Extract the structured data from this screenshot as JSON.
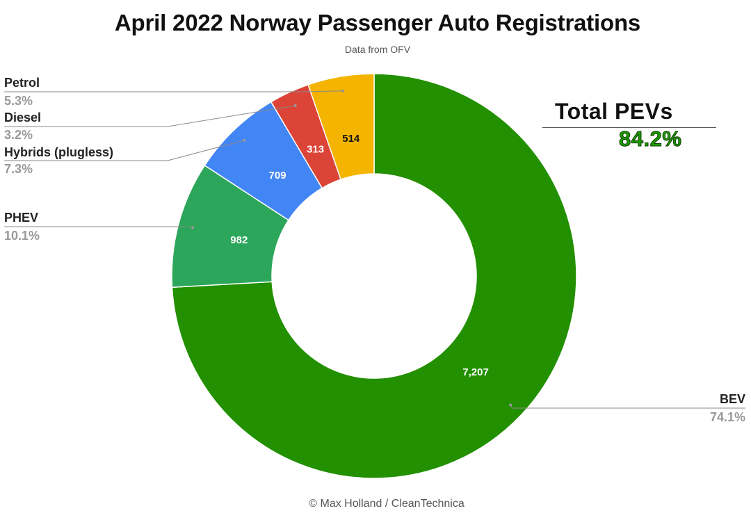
{
  "chart_data": {
    "type": "pie",
    "donut": true,
    "title": "April 2022 Norway Passenger Auto Registrations",
    "subtitle": "Data from OFV",
    "series": [
      {
        "name": "BEV",
        "value": 7207,
        "value_label": "7,207",
        "percent_label": "74.1%",
        "color": "#229000",
        "value_color": "#ffffff"
      },
      {
        "name": "PHEV",
        "value": 982,
        "value_label": "982",
        "percent_label": "10.1%",
        "color": "#2ca65a",
        "value_color": "#ffffff"
      },
      {
        "name": "Hybrids (plugless)",
        "value": 709,
        "value_label": "709",
        "percent_label": "7.3%",
        "color": "#4285f4",
        "value_color": "#ffffff"
      },
      {
        "name": "Diesel",
        "value": 313,
        "value_label": "313",
        "percent_label": "3.2%",
        "color": "#db4437",
        "value_color": "#ffffff"
      },
      {
        "name": "Petrol",
        "value": 514,
        "value_label": "514",
        "percent_label": "5.3%",
        "color": "#f4b400",
        "value_color": "#111111"
      }
    ],
    "legend_placement": "leader-lines"
  },
  "callout": {
    "label": "Total PEVs",
    "value": "84.2%",
    "value_color": "#1f9a00"
  },
  "footer": {
    "credit": "© Max Holland / CleanTechnica"
  }
}
